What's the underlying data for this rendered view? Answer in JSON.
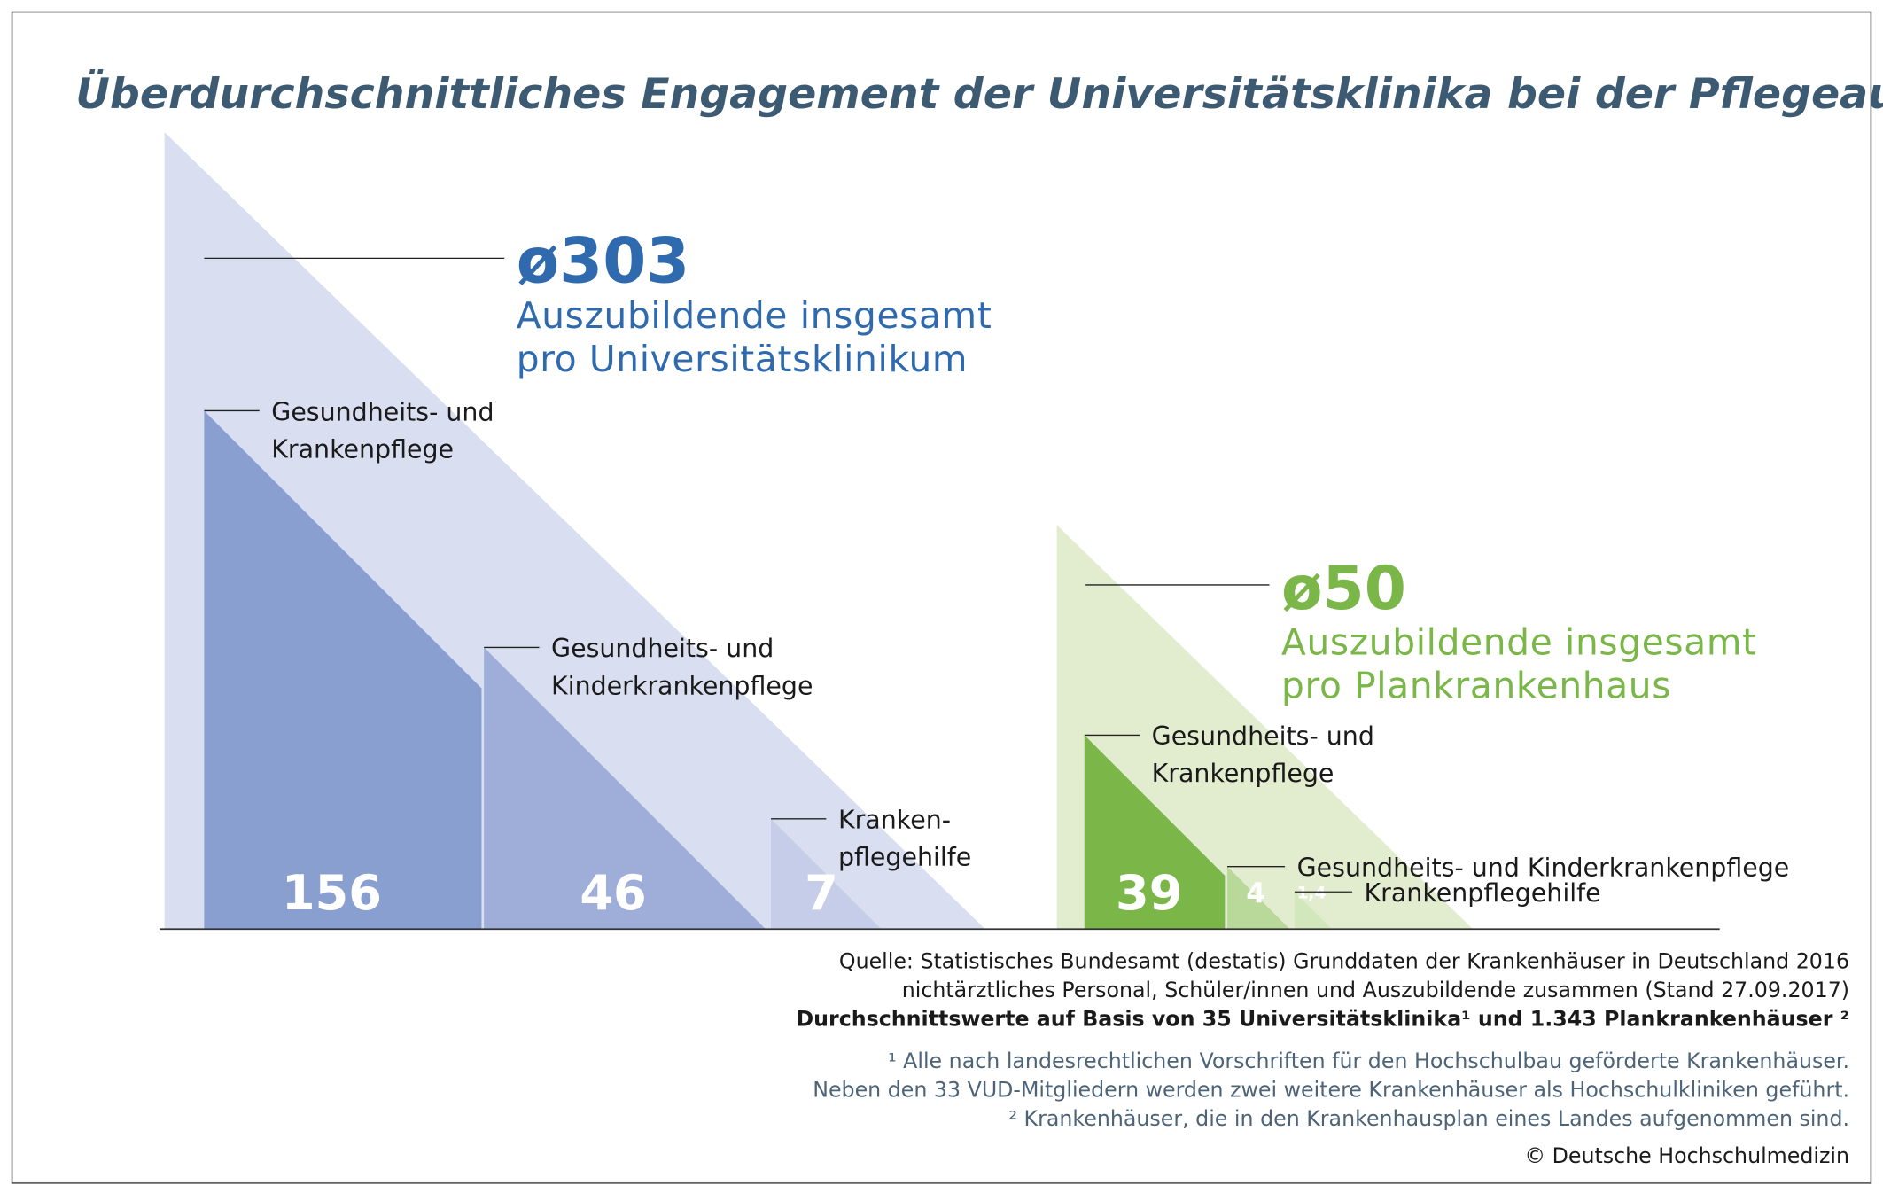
{
  "chart_data": {
    "type": "triangle",
    "title": "Überdurchschnittliches Engagement der Universitätsklinika bei der Pflegeausbildung",
    "groups": [
      {
        "total": 303,
        "total_label": "ø303",
        "caption": [
          "Auszubildende insgesamt",
          "pro Universitätsklinikum"
        ],
        "color": "#2e6aad",
        "background": "#d9def0",
        "names": [
          [
            "Gesundheits- und",
            "Krankenpflege"
          ],
          [
            "Gesundheits- und",
            "Kinderkrankenpflege"
          ],
          [
            "Kranken-",
            "pflegehilfe"
          ]
        ],
        "values": [
          156,
          46,
          7
        ],
        "colors": [
          "#889fd0",
          "#9eaed9",
          "#c6cde9"
        ]
      },
      {
        "total": 50,
        "total_label": "ø50",
        "caption": [
          "Auszubildende insgesamt",
          "pro Plankrankenhaus"
        ],
        "color": "#7ab648",
        "background": "#e2edcf",
        "names": [
          [
            "Gesundheits- und",
            "Krankenpflege"
          ],
          [
            "Gesundheits- und Kinderkrankenpflege"
          ],
          [
            "Krankenpflegehilfe"
          ]
        ],
        "values": [
          39,
          4,
          1.4
        ],
        "value_labels": [
          "39",
          "4",
          "1,4"
        ],
        "colors": [
          "#7ab648",
          "#b9d99b",
          "#d3e7bc"
        ]
      }
    ]
  },
  "source": [
    "Quelle: Statistisches Bundesamt (destatis) Grunddaten der Krankenhäuser in Deutschland 2016",
    "nichtärztliches Personal, Schüler/innen und Auszubildende zusammen (Stand 27.09.2017)",
    "Durchschnittswerte auf Basis von 35 Universitätsklinika¹ und 1.343 Plankrankenhäuser ²"
  ],
  "footnotes": [
    "¹ Alle nach landesrechtlichen Vorschriften für den Hochschulbau geförderte Krankenhäuser.",
    "Neben den 33 VUD-Mitgliedern werden zwei weitere Krankenhäuser als Hochschulkliniken geführt.",
    "² Krankenhäuser, die in den Krankenhausplan eines Landes aufgenommen sind."
  ],
  "copyright": "© Deutsche Hochschulmedizin"
}
